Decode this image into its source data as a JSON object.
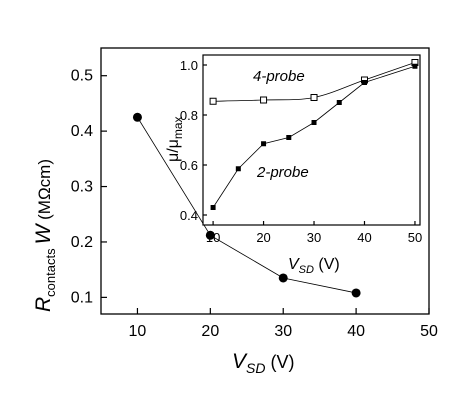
{
  "chart_data": [
    {
      "type": "scatter",
      "title": "",
      "xlabel": {
        "main": "V",
        "sub": "SD",
        "unit": " (V)"
      },
      "ylabel": {
        "main": "R",
        "sub": "contacts",
        "mid": "W",
        "unit": " (MΩcm)"
      },
      "xlim": [
        5,
        50
      ],
      "ylim": [
        0.07,
        0.55
      ],
      "xticks": [
        10,
        20,
        30,
        40,
        50
      ],
      "yticks": [
        0.1,
        0.2,
        0.3,
        0.4,
        0.5
      ],
      "xtick_labels": [
        "10",
        "20",
        "30",
        "40",
        "50"
      ],
      "ytick_labels": [
        "0.1",
        "0.2",
        "0.3",
        "0.4",
        "0.5"
      ],
      "grid": false,
      "series": [
        {
          "marker": "filled-circle",
          "connected": true,
          "x": [
            10,
            20,
            30,
            40
          ],
          "y": [
            0.425,
            0.212,
            0.135,
            0.108
          ]
        }
      ]
    },
    {
      "type": "line",
      "title": "",
      "xlabel": {
        "main": "V",
        "sub": "SD",
        "unit": " (V)"
      },
      "ylabel": {
        "main": "μ/μ",
        "sub": "max"
      },
      "xlim": [
        8,
        51
      ],
      "ylim": [
        0.36,
        1.04
      ],
      "xticks": [
        10,
        20,
        30,
        40,
        50
      ],
      "yticks": [
        0.4,
        0.6,
        0.8,
        1.0
      ],
      "xtick_labels": [
        "10",
        "20",
        "30",
        "40",
        "50"
      ],
      "ytick_labels": [
        "0.4",
        "0.6",
        "0.8",
        "1.0"
      ],
      "grid": false,
      "series": [
        {
          "name": "4-probe",
          "marker": "open-square",
          "x": [
            10,
            20,
            30,
            40,
            50
          ],
          "y": [
            0.855,
            0.86,
            0.87,
            0.94,
            1.01
          ]
        },
        {
          "name": "2-probe",
          "marker": "filled-square",
          "x": [
            10,
            15,
            20,
            25,
            30,
            35,
            40,
            50
          ],
          "y": [
            0.43,
            0.585,
            0.685,
            0.71,
            0.77,
            0.85,
            0.93,
            0.995
          ]
        }
      ]
    }
  ]
}
